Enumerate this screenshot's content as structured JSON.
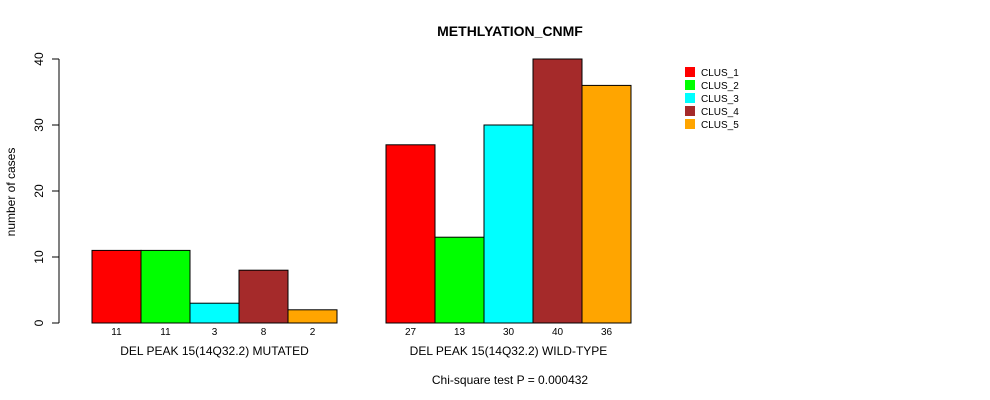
{
  "chart_data": {
    "type": "bar",
    "title": "METHLYATION_CNMF",
    "ylabel": "number of cases",
    "xlabel": "",
    "ylim": [
      0,
      40
    ],
    "yticks": [
      0,
      10,
      20,
      30,
      40
    ],
    "groups": [
      "DEL PEAK 15(14Q32.2) MUTATED",
      "DEL PEAK 15(14Q32.2) WILD-TYPE"
    ],
    "series": [
      {
        "name": "CLUS_1",
        "color": "#ff0000",
        "values": [
          11,
          27
        ]
      },
      {
        "name": "CLUS_2",
        "color": "#00ff00",
        "values": [
          11,
          13
        ]
      },
      {
        "name": "CLUS_3",
        "color": "#00ffff",
        "values": [
          3,
          30
        ]
      },
      {
        "name": "CLUS_4",
        "color": "#a52a2a",
        "values": [
          8,
          40
        ]
      },
      {
        "name": "CLUS_5",
        "color": "#ffa500",
        "values": [
          2,
          36
        ]
      }
    ],
    "legend_position": "top-right",
    "footnote": "Chi-square test P = 0.000432"
  }
}
